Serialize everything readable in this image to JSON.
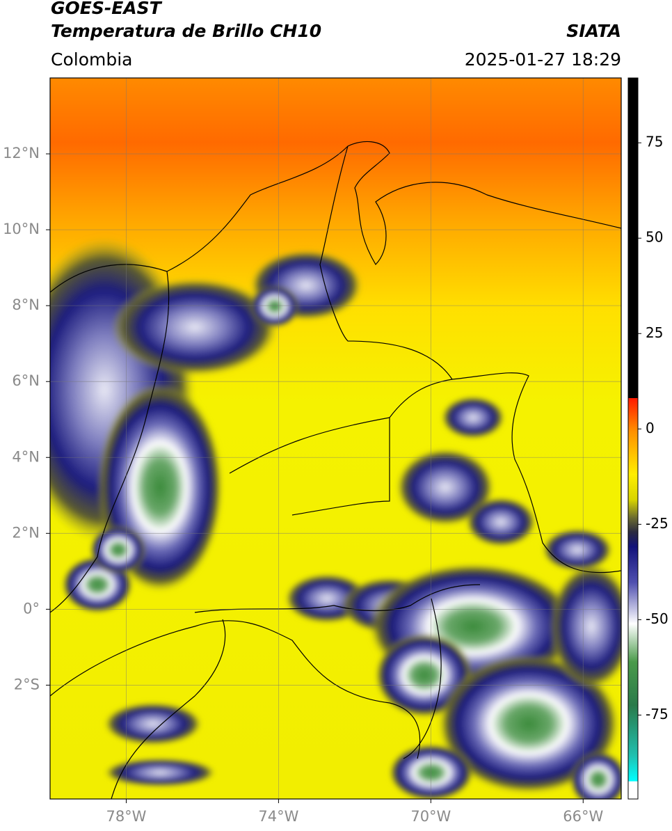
{
  "header": {
    "title": "GOES-EAST",
    "subtitle": "Temperatura de Brillo CH10",
    "source": "SIATA",
    "region": "Colombia",
    "timestamp": "2025-01-27 18:29"
  },
  "map": {
    "type": "map",
    "xlim": [
      -80,
      -65
    ],
    "ylim": [
      -5,
      14
    ],
    "xticks": [
      {
        "value": -78,
        "label": "78°W"
      },
      {
        "value": -74,
        "label": "74°W"
      },
      {
        "value": -70,
        "label": "70°W"
      },
      {
        "value": -66,
        "label": "66°W"
      }
    ],
    "yticks": [
      {
        "value": 12,
        "label": "12°N"
      },
      {
        "value": 10,
        "label": "10°N"
      },
      {
        "value": 8,
        "label": "8°N"
      },
      {
        "value": 6,
        "label": "6°N"
      },
      {
        "value": 4,
        "label": "4°N"
      },
      {
        "value": 2,
        "label": "2°N"
      },
      {
        "value": 0,
        "label": "0°"
      },
      {
        "value": -2,
        "label": "2°S"
      }
    ],
    "grid": true
  },
  "colorbar": {
    "limits": [
      -97,
      92
    ],
    "ticks": [
      75,
      50,
      25,
      0,
      -25,
      -50,
      -75
    ]
  }
}
